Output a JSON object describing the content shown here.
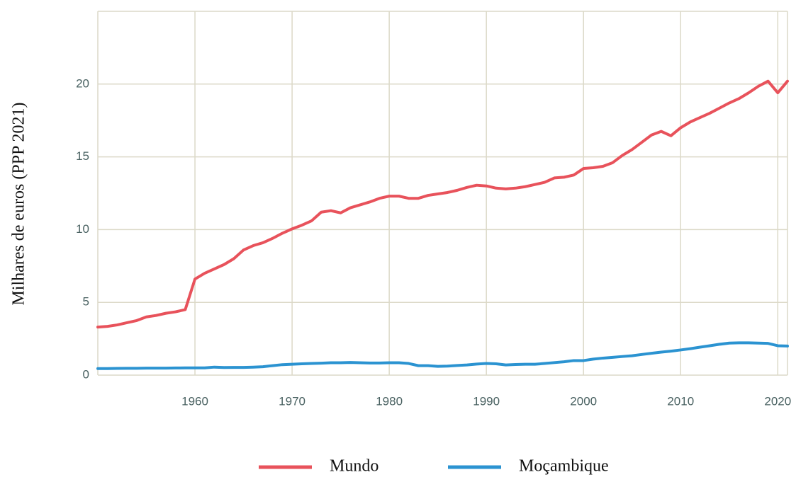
{
  "chart_data": {
    "type": "line",
    "ylabel": "Milhares de euros (PPP 2021)",
    "x": [
      1950,
      1951,
      1952,
      1953,
      1954,
      1955,
      1956,
      1957,
      1958,
      1959,
      1960,
      1961,
      1962,
      1963,
      1964,
      1965,
      1966,
      1967,
      1968,
      1969,
      1970,
      1971,
      1972,
      1973,
      1974,
      1975,
      1976,
      1977,
      1978,
      1979,
      1980,
      1981,
      1982,
      1983,
      1984,
      1985,
      1986,
      1987,
      1988,
      1989,
      1990,
      1991,
      1992,
      1993,
      1994,
      1995,
      1996,
      1997,
      1998,
      1999,
      2000,
      2001,
      2002,
      2003,
      2004,
      2005,
      2006,
      2007,
      2008,
      2009,
      2010,
      2011,
      2012,
      2013,
      2014,
      2015,
      2016,
      2017,
      2018,
      2019,
      2020,
      2021
    ],
    "series": [
      {
        "name": "Mundo",
        "color": "#e8525b",
        "values": [
          3.3,
          3.35,
          3.45,
          3.6,
          3.75,
          4.0,
          4.1,
          4.25,
          4.35,
          4.5,
          6.6,
          7.0,
          7.3,
          7.6,
          8.0,
          8.6,
          8.9,
          9.1,
          9.4,
          9.75,
          10.05,
          10.3,
          10.6,
          11.2,
          11.3,
          11.15,
          11.5,
          11.7,
          11.9,
          12.15,
          12.3,
          12.3,
          12.15,
          12.15,
          12.35,
          12.45,
          12.55,
          12.7,
          12.9,
          13.05,
          13.0,
          12.85,
          12.8,
          12.85,
          12.95,
          13.1,
          13.25,
          13.55,
          13.6,
          13.75,
          14.2,
          14.25,
          14.35,
          14.6,
          15.1,
          15.5,
          16.0,
          16.5,
          16.75,
          16.45,
          17.0,
          17.4,
          17.7,
          18.0,
          18.35,
          18.7,
          19.0,
          19.4,
          19.85,
          20.2,
          19.4,
          20.2
        ]
      },
      {
        "name": "Moçambique",
        "color": "#2b93d1",
        "values": [
          0.45,
          0.45,
          0.46,
          0.47,
          0.47,
          0.48,
          0.48,
          0.48,
          0.49,
          0.5,
          0.5,
          0.5,
          0.55,
          0.52,
          0.53,
          0.53,
          0.55,
          0.58,
          0.65,
          0.72,
          0.75,
          0.78,
          0.8,
          0.82,
          0.85,
          0.85,
          0.87,
          0.85,
          0.83,
          0.83,
          0.85,
          0.85,
          0.8,
          0.65,
          0.65,
          0.6,
          0.62,
          0.66,
          0.7,
          0.76,
          0.8,
          0.78,
          0.7,
          0.73,
          0.75,
          0.75,
          0.8,
          0.86,
          0.92,
          1.0,
          1.0,
          1.1,
          1.17,
          1.22,
          1.28,
          1.33,
          1.42,
          1.5,
          1.58,
          1.65,
          1.73,
          1.82,
          1.92,
          2.02,
          2.12,
          2.2,
          2.22,
          2.22,
          2.2,
          2.18,
          2.02,
          2.0
        ]
      }
    ],
    "xlim": [
      1950,
      2021
    ],
    "xticks": [
      1960,
      1970,
      1980,
      1990,
      2000,
      2010,
      2020
    ],
    "ylim": [
      0,
      25
    ],
    "yticks": [
      0,
      5,
      10,
      15,
      20
    ],
    "grid": true,
    "legend": "bottom"
  }
}
